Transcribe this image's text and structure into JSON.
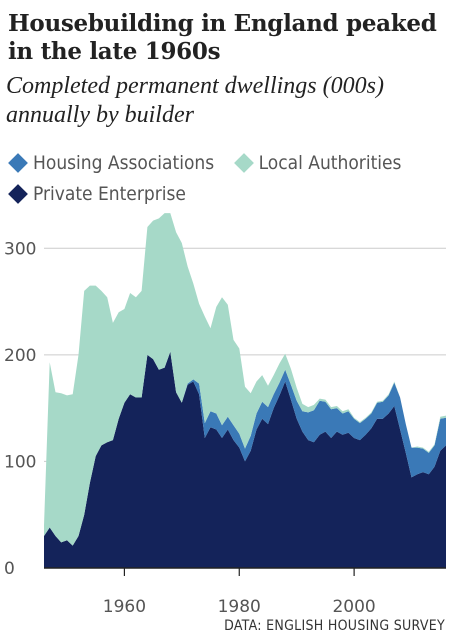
{
  "title": "Housebuilding in England peaked in the late 1960s",
  "subtitle": "Completed permanent dwellings (000s) annually by builder",
  "source": "DATA: ENGLISH HOUSING SURVEY",
  "chart_data": {
    "type": "area",
    "stacked": true,
    "title": "Housebuilding in England peaked in the late 1960s",
    "subtitle": "Completed permanent dwellings (000s) annually by builder",
    "xlabel": "",
    "ylabel": "",
    "xlim": [
      1946,
      2016
    ],
    "ylim": [
      0,
      350
    ],
    "x_ticks": [
      1960,
      1980,
      2000
    ],
    "y_ticks": [
      0,
      100,
      200,
      300
    ],
    "legend_position": "top",
    "grid": "horizontal",
    "x": [
      1946,
      1947,
      1948,
      1949,
      1950,
      1951,
      1952,
      1953,
      1954,
      1955,
      1956,
      1957,
      1958,
      1959,
      1960,
      1961,
      1962,
      1963,
      1964,
      1965,
      1966,
      1967,
      1968,
      1969,
      1970,
      1971,
      1972,
      1973,
      1974,
      1975,
      1976,
      1977,
      1978,
      1979,
      1980,
      1981,
      1982,
      1983,
      1984,
      1985,
      1986,
      1987,
      1988,
      1989,
      1990,
      1991,
      1992,
      1993,
      1994,
      1995,
      1996,
      1997,
      1998,
      1999,
      2000,
      2001,
      2002,
      2003,
      2004,
      2005,
      2006,
      2007,
      2008,
      2009,
      2010,
      2011,
      2012,
      2013,
      2014,
      2015,
      2016
    ],
    "series": [
      {
        "name": "Private Enterprise",
        "color": "#14235a",
        "values": [
          30,
          38,
          30,
          24,
          26,
          21,
          30,
          50,
          80,
          105,
          115,
          118,
          120,
          140,
          155,
          163,
          160,
          160,
          200,
          196,
          186,
          188,
          203,
          165,
          155,
          172,
          175,
          163,
          122,
          132,
          130,
          122,
          130,
          120,
          113,
          100,
          110,
          130,
          140,
          135,
          150,
          162,
          175,
          158,
          140,
          128,
          120,
          118,
          125,
          128,
          122,
          128,
          125,
          127,
          122,
          120,
          125,
          131,
          140,
          140,
          145,
          152,
          130,
          108,
          85,
          88,
          90,
          88,
          95,
          110,
          115
        ]
      },
      {
        "name": "Housing Associations",
        "color": "#3a79b7",
        "values": [
          0,
          0,
          0,
          0,
          0,
          0,
          0,
          0,
          0,
          0,
          0,
          0,
          0,
          0,
          0,
          0,
          0,
          0,
          0,
          0,
          0,
          0,
          0,
          0,
          0,
          1,
          2,
          10,
          14,
          15,
          15,
          12,
          12,
          14,
          13,
          12,
          14,
          15,
          16,
          16,
          13,
          12,
          11,
          14,
          17,
          19,
          26,
          30,
          32,
          28,
          27,
          22,
          20,
          20,
          18,
          16,
          15,
          14,
          15,
          16,
          17,
          22,
          30,
          27,
          28,
          25,
          22,
          20,
          20,
          30,
          26
        ]
      },
      {
        "name": "Local Authorities",
        "color": "#a6d9c8",
        "values": [
          10,
          155,
          135,
          140,
          136,
          142,
          170,
          210,
          185,
          160,
          145,
          136,
          110,
          100,
          88,
          95,
          94,
          100,
          120,
          130,
          142,
          145,
          130,
          150,
          150,
          110,
          90,
          75,
          100,
          78,
          100,
          120,
          105,
          80,
          80,
          58,
          40,
          30,
          25,
          20,
          18,
          18,
          15,
          15,
          12,
          7,
          5,
          5,
          2,
          2,
          2,
          2,
          2,
          2,
          1,
          1,
          1,
          1,
          1,
          1,
          1,
          1,
          0,
          0,
          0,
          1,
          1,
          1,
          1,
          2,
          2
        ]
      }
    ]
  },
  "legend": [
    {
      "label": "Housing Associations",
      "color": "#3a79b7"
    },
    {
      "label": "Local Authorities",
      "color": "#a6d9c8"
    },
    {
      "label": "Private Enterprise",
      "color": "#14235a"
    }
  ],
  "colors": {
    "grid": "#cccccc",
    "axis": "#222222",
    "tick_text": "#555555"
  }
}
